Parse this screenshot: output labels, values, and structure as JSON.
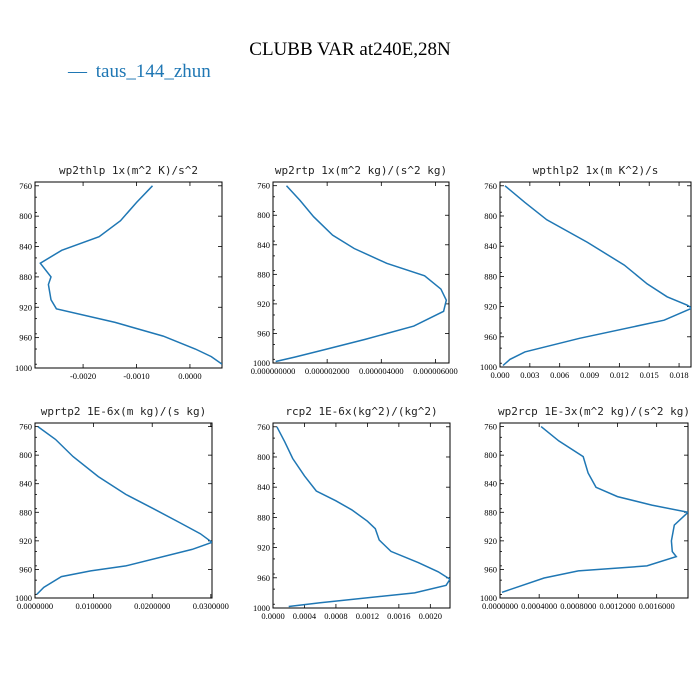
{
  "figure": {
    "title": "CLUBB VAR at240E,28N",
    "legend": {
      "label": "taus_144_zhun",
      "color": "#1f77b4",
      "marker": "—"
    }
  },
  "chart_data": [
    {
      "type": "line",
      "title": "wp2thlp  1x(m^2 K)/s^2",
      "series": [
        {
          "name": "taus_144_zhun",
          "color": "#1f77b4",
          "x": [
            -0.0007,
            -0.001,
            -0.0013,
            -0.0017,
            -0.0024,
            -0.0028,
            -0.0026,
            -0.00265,
            -0.0026,
            -0.0025,
            -0.0014,
            -0.0005,
            0.0001,
            0.0004,
            0.0006
          ],
          "y": [
            760,
            782,
            806,
            827,
            845,
            862,
            880,
            890,
            910,
            922,
            940,
            958,
            975,
            985,
            995
          ]
        }
      ],
      "xlim": [
        -0.0029,
        0.0006
      ],
      "ylim": [
        1000,
        755
      ],
      "xticks": [
        -0.002,
        -0.001,
        0.0
      ],
      "xtick_labels": [
        "-0.0020",
        "-0.0010",
        "0.0000"
      ],
      "yticks": [
        760,
        800,
        840,
        880,
        920,
        960,
        1000
      ],
      "ytick_labels": [
        "760",
        "800",
        "840",
        "880",
        "920",
        "960",
        "1000"
      ]
    },
    {
      "type": "line",
      "title": "wp2rtp  1x(m^2 kg)/(s^2 kg)",
      "series": [
        {
          "name": "taus_144_zhun",
          "color": "#1f77b4",
          "x": [
            5e-07,
            1e-06,
            1.5e-06,
            2.2e-06,
            3e-06,
            4.2e-06,
            5.6e-06,
            6.2e-06,
            6.4e-06,
            6.3e-06,
            5.2e-06,
            3.4e-06,
            1.8e-06,
            8e-07,
            1e-07
          ],
          "y": [
            760,
            780,
            802,
            827,
            845,
            865,
            882,
            900,
            915,
            930,
            950,
            968,
            983,
            992,
            998
          ]
        }
      ],
      "xlim": [
        0.0,
        6.5e-06
      ],
      "ylim": [
        1000,
        755
      ],
      "xticks": [
        0.0,
        2e-06,
        4e-06,
        6e-06
      ],
      "xtick_labels": [
        "0.000000000",
        "0.000002000",
        "0.000004000",
        "0.000006000"
      ],
      "yticks": [
        760,
        800,
        840,
        880,
        920,
        960,
        1000
      ],
      "ytick_labels": [
        "760",
        "800",
        "840",
        "880",
        "920",
        "960",
        "1000"
      ]
    },
    {
      "type": "line",
      "title": "wpthlp2  1x(m K^2)/s",
      "series": [
        {
          "name": "taus_144_zhun",
          "color": "#1f77b4",
          "x": [
            0.0005,
            0.0025,
            0.0047,
            0.0088,
            0.0125,
            0.0148,
            0.0168,
            0.0188,
            0.0193,
            0.0165,
            0.008,
            0.0025,
            0.001,
            0.0003
          ],
          "y": [
            760,
            782,
            805,
            835,
            865,
            890,
            907,
            918,
            922,
            938,
            962,
            980,
            990,
            998
          ]
        }
      ],
      "xlim": [
        0.0,
        0.0192
      ],
      "ylim": [
        1000,
        755
      ],
      "xticks": [
        0.0,
        0.003,
        0.006,
        0.009,
        0.012,
        0.015,
        0.018
      ],
      "xtick_labels": [
        "0.000",
        "0.003",
        "0.006",
        "0.009",
        "0.012",
        "0.015",
        "0.018"
      ],
      "yticks": [
        760,
        800,
        840,
        880,
        920,
        960,
        1000
      ],
      "ytick_labels": [
        "760",
        "800",
        "840",
        "880",
        "920",
        "960",
        "1000"
      ]
    },
    {
      "type": "line",
      "title": "wprtp2  1E-6x(m kg)/(s kg)",
      "series": [
        {
          "name": "taus_144_zhun",
          "color": "#1f77b4",
          "x": [
            0.0005,
            0.0035,
            0.0065,
            0.0108,
            0.0155,
            0.0202,
            0.0248,
            0.0282,
            0.0302,
            0.0268,
            0.0155,
            0.0095,
            0.0045,
            0.0015,
            0.0003
          ],
          "y": [
            760,
            778,
            802,
            830,
            855,
            875,
            895,
            910,
            922,
            932,
            955,
            962,
            970,
            985,
            995
          ]
        }
      ],
      "xlim": [
        0.0,
        0.0302
      ],
      "ylim": [
        1000,
        755
      ],
      "xticks": [
        0.0,
        0.01,
        0.02,
        0.03
      ],
      "xtick_labels": [
        "0.0000000",
        "0.0100000",
        "0.0200000",
        "0.0300000"
      ],
      "yticks": [
        760,
        800,
        840,
        880,
        920,
        960,
        1000
      ],
      "ytick_labels": [
        "760",
        "800",
        "840",
        "880",
        "920",
        "960",
        "1000"
      ]
    },
    {
      "type": "line",
      "title": "rcp2  1E-6x(kg^2)/(kg^2)",
      "series": [
        {
          "name": "taus_144_zhun",
          "color": "#1f77b4",
          "x": [
            5e-05,
            0.00015,
            0.00025,
            0.0004,
            0.00055,
            0.0008,
            0.001,
            0.0012,
            0.0013,
            0.00135,
            0.0015,
            0.00185,
            0.0021,
            0.00225,
            0.0022,
            0.0018,
            0.0006,
            0.0002
          ],
          "y": [
            760,
            780,
            802,
            825,
            845,
            858,
            870,
            885,
            895,
            910,
            925,
            940,
            952,
            962,
            970,
            980,
            993,
            998
          ]
        }
      ],
      "xlim": [
        0.0,
        0.00225
      ],
      "ylim": [
        1000,
        755
      ],
      "xticks": [
        0.0,
        0.0004,
        0.0008,
        0.0012,
        0.0016,
        0.002
      ],
      "xtick_labels": [
        "0.0000",
        "0.0004",
        "0.0008",
        "0.0012",
        "0.0016",
        "0.0020"
      ],
      "yticks": [
        760,
        800,
        840,
        880,
        920,
        960,
        1000
      ],
      "ytick_labels": [
        "760",
        "800",
        "840",
        "880",
        "920",
        "960",
        "1000"
      ]
    },
    {
      "type": "line",
      "title": "wp2rcp  1E-3x(m^2 kg)/(s^2 kg)",
      "series": [
        {
          "name": "taus_144_zhun",
          "color": "#1f77b4",
          "x": [
            0.00042,
            0.0006,
            0.00085,
            0.0009,
            0.00098,
            0.0012,
            0.00155,
            0.00192,
            0.00178,
            0.00175,
            0.00176,
            0.0018,
            0.0015,
            0.0008,
            0.00045,
            2e-05
          ],
          "y": [
            760,
            780,
            802,
            825,
            845,
            858,
            870,
            880,
            898,
            920,
            935,
            942,
            955,
            962,
            972,
            992
          ]
        }
      ],
      "xlim": [
        0.0,
        0.00192
      ],
      "ylim": [
        1000,
        755
      ],
      "xticks": [
        0.0,
        0.0004,
        0.0008,
        0.0012,
        0.0016
      ],
      "xtick_labels": [
        "0.0000000",
        "0.0004000",
        "0.0008000",
        "0.0012000",
        "0.0016000"
      ],
      "yticks": [
        760,
        800,
        840,
        880,
        920,
        960,
        1000
      ],
      "ytick_labels": [
        "760",
        "800",
        "840",
        "880",
        "920",
        "960",
        "1000"
      ]
    }
  ]
}
